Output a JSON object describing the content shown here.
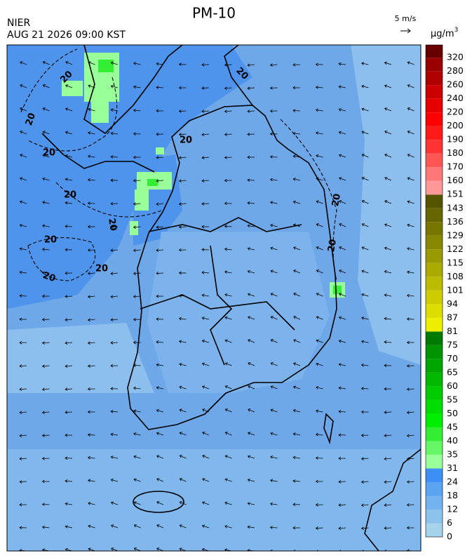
{
  "header": {
    "title": "PM-10",
    "agency": "NIER",
    "datetime": "AUG 21 2026 09:00 KST"
  },
  "wind_legend": {
    "label": "5 m/s"
  },
  "colorbar": {
    "unit": "μg/m",
    "unit_superscript": "3",
    "levels": [
      "0",
      "6",
      "12",
      "18",
      "24",
      "31",
      "35",
      "40",
      "45",
      "50",
      "55",
      "60",
      "65",
      "70",
      "75",
      "81",
      "87",
      "94",
      "101",
      "108",
      "115",
      "122",
      "129",
      "136",
      "143",
      "151",
      "160",
      "170",
      "180",
      "190",
      "200",
      "220",
      "240",
      "260",
      "280",
      "320"
    ],
    "colors": [
      "#a6d3ec",
      "#8cc3ec",
      "#73b3ef",
      "#5aa4f2",
      "#3c8ff5",
      "#99ff99",
      "#66f766",
      "#33ee33",
      "#00ee00",
      "#00dd00",
      "#00cc00",
      "#00b800",
      "#00a600",
      "#009400",
      "#007a00",
      "#eeee00",
      "#dddd00",
      "#cccc00",
      "#bbbb00",
      "#aaaa00",
      "#999900",
      "#888800",
      "#777700",
      "#666600",
      "#555500",
      "#ff9999",
      "#ff7777",
      "#ff5555",
      "#ff3333",
      "#ff1a1a",
      "#ff0000",
      "#e60000",
      "#cc0000",
      "#b00000",
      "#990000",
      "#660000"
    ]
  },
  "contour_labels": [
    "20",
    "20",
    "20",
    "20",
    "20",
    "20",
    "20",
    "20",
    "20",
    "20",
    "20",
    "20"
  ]
}
